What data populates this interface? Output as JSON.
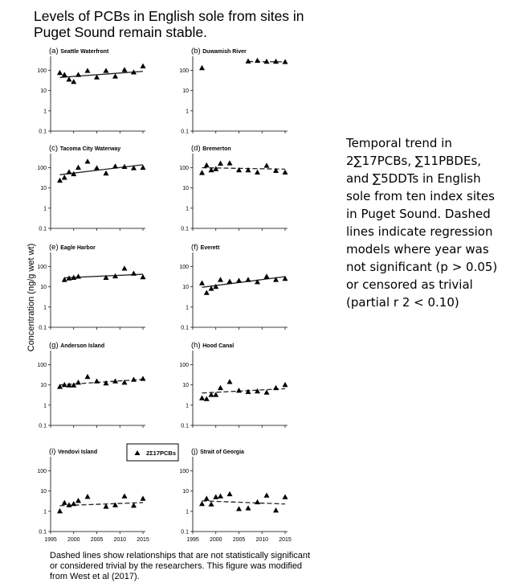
{
  "title": "Levels of PCBs in English sole from sites in Puget Sound remain stable.",
  "side_text": "Temporal trend in 2∑17PCBs, ∑11PBDEs, and ∑5DDTs in English sole from ten index sites in Puget Sound. Dashed lines indicate regression models where year was not significant (p > 0.05) or censored as trivial (partial r 2 < 0.10)",
  "caption": "Dashed lines show relationships that are not statistically significant or considered trivial by the researchers. This figure was modified from West et al (2017).",
  "chart_data": {
    "type": "scatter",
    "ylabel": "Concentration (ng/g wet wt)",
    "yscale": "log",
    "ylim": [
      0.1,
      500
    ],
    "xlim": [
      1995,
      2015
    ],
    "ytick_labels": [
      "0.1",
      "1",
      "10",
      "100"
    ],
    "xtick_labels": [
      "1995",
      "2000",
      "2005",
      "2010",
      "2015"
    ],
    "legend": {
      "label": "2Σ17PCBs",
      "marker": "triangle",
      "position": "top-center of bottom row"
    },
    "panels": [
      {
        "letter": "(a)",
        "name": "Seattle Waterfront",
        "x": [
          1997,
          1998,
          1999,
          2000,
          2001,
          2003,
          2005,
          2007,
          2009,
          2011,
          2013,
          2015
        ],
        "y": [
          75,
          60,
          35,
          27,
          60,
          95,
          45,
          95,
          50,
          105,
          80,
          160
        ],
        "trend": {
          "style": "solid",
          "x": [
            1997,
            2015
          ],
          "y": [
            45,
            90
          ]
        }
      },
      {
        "letter": "(b)",
        "name": "Duwamish River",
        "x": [
          1997,
          2007,
          2009,
          2011,
          2013,
          2015
        ],
        "y": [
          130,
          280,
          300,
          270,
          270,
          260
        ],
        "trend": {
          "style": "dashed",
          "x": [
            2007,
            2015
          ],
          "y": [
            275,
            265
          ]
        }
      },
      {
        "letter": "(c)",
        "name": "Tacoma City Waterway",
        "x": [
          1997,
          1998,
          1999,
          2000,
          2001,
          2003,
          2005,
          2007,
          2009,
          2011,
          2013,
          2015
        ],
        "y": [
          23,
          32,
          60,
          48,
          100,
          200,
          95,
          52,
          115,
          110,
          95,
          100
        ],
        "trend": {
          "style": "solid",
          "x": [
            1997,
            2015
          ],
          "y": [
            45,
            140
          ]
        }
      },
      {
        "letter": "(d)",
        "name": "Bremerton",
        "x": [
          1997,
          1998,
          1999,
          2000,
          2001,
          2003,
          2005,
          2007,
          2009,
          2011,
          2013,
          2015
        ],
        "y": [
          55,
          130,
          75,
          85,
          160,
          165,
          75,
          75,
          58,
          125,
          70,
          58
        ],
        "trend": {
          "style": "dashed",
          "x": [
            1997,
            2015
          ],
          "y": [
            100,
            85
          ]
        }
      },
      {
        "letter": "(e)",
        "name": "Eagle Harbor",
        "x": [
          1998,
          1999,
          2000,
          2001,
          2007,
          2009,
          2011,
          2013,
          2015
        ],
        "y": [
          22,
          26,
          28,
          32,
          28,
          33,
          80,
          45,
          30
        ],
        "trend": {
          "style": "solid",
          "x": [
            1998,
            2015
          ],
          "y": [
            28,
            42
          ]
        }
      },
      {
        "letter": "(f)",
        "name": "Everett",
        "x": [
          1997,
          1998,
          1999,
          2000,
          2001,
          2003,
          2005,
          2007,
          2009,
          2011,
          2013,
          2015
        ],
        "y": [
          15,
          5,
          8,
          10,
          22,
          18,
          20,
          22,
          17,
          32,
          22,
          25
        ],
        "trend": {
          "style": "solid",
          "x": [
            1997,
            2015
          ],
          "y": [
            9.5,
            32
          ]
        }
      },
      {
        "letter": "(g)",
        "name": "Anderson Island",
        "x": [
          1997,
          1998,
          1999,
          2000,
          2001,
          2003,
          2005,
          2007,
          2009,
          2011,
          2013,
          2015
        ],
        "y": [
          8,
          10,
          9.5,
          9.5,
          13,
          25,
          15,
          12,
          15,
          13,
          18,
          20
        ],
        "trend": {
          "style": "dashed",
          "x": [
            1997,
            2015
          ],
          "y": [
            10,
            19
          ]
        }
      },
      {
        "letter": "(h)",
        "name": "Hood Canal",
        "x": [
          1997,
          1998,
          1999,
          2000,
          2001,
          2003,
          2005,
          2007,
          2009,
          2011,
          2013,
          2015
        ],
        "y": [
          2.2,
          2,
          3.2,
          3.2,
          7,
          14,
          5.2,
          4.5,
          4.8,
          4.2,
          7,
          10
        ],
        "trend": {
          "style": "dashed",
          "x": [
            1997,
            2015
          ],
          "y": [
            4,
            6.5
          ]
        }
      },
      {
        "letter": "(i)",
        "name": "Vendovi Island",
        "x": [
          1997,
          1998,
          1999,
          2000,
          2001,
          2003,
          2007,
          2009,
          2011,
          2013,
          2015
        ],
        "y": [
          1,
          2.6,
          2,
          2.3,
          3.3,
          5.2,
          1.7,
          2,
          5.5,
          1.9,
          4.2
        ],
        "trend": {
          "style": "dashed",
          "x": [
            1997,
            2015
          ],
          "y": [
            1.9,
            2.7
          ]
        }
      },
      {
        "letter": "(j)",
        "name": "Strait of Georgia",
        "x": [
          1997,
          1998,
          1999,
          2000,
          2001,
          2003,
          2005,
          2007,
          2009,
          2011,
          2013,
          2015
        ],
        "y": [
          2.3,
          4.2,
          2.2,
          5,
          5.5,
          7,
          1.3,
          1.4,
          2.8,
          6,
          1.1,
          5
        ],
        "trend": {
          "style": "dashed",
          "x": [
            1997,
            2015
          ],
          "y": [
            3.3,
            2.3
          ]
        }
      }
    ]
  }
}
